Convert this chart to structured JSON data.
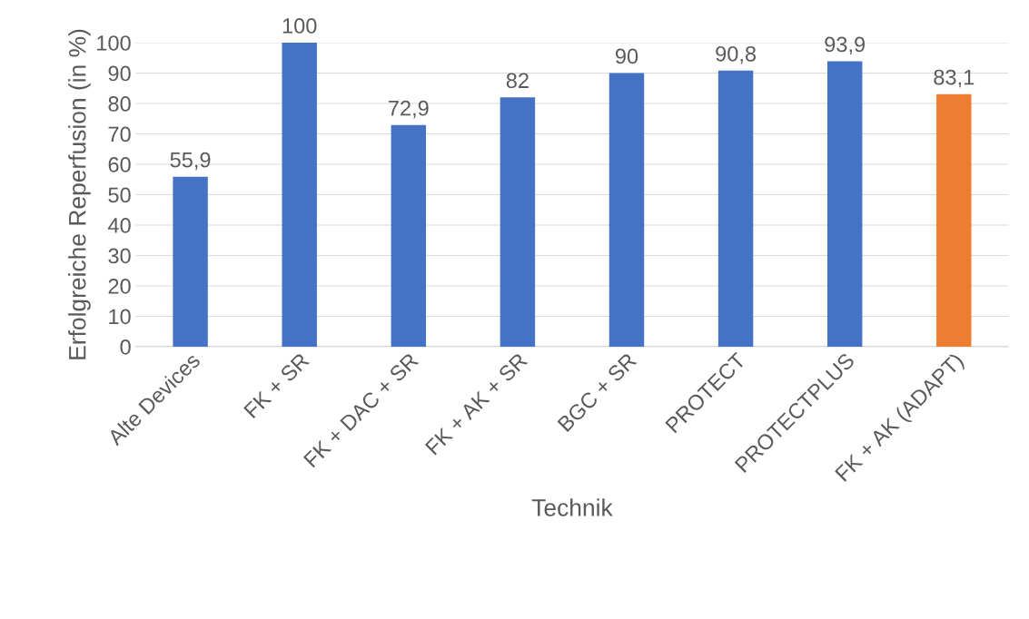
{
  "chart_data": {
    "type": "bar",
    "xlabel": "Technik",
    "ylabel": "Erfolgreiche Reperfusion (in %)",
    "categories": [
      "Alte Devices",
      "FK + SR",
      "FK + DAC + SR",
      "FK + AK + SR",
      "BGC + SR",
      "PROTECT",
      "PROTECTPLUS",
      "FK + AK (ADAPT)"
    ],
    "values": [
      55.9,
      100,
      72.9,
      82,
      90,
      90.8,
      93.9,
      83.1
    ],
    "colors": [
      "#4472c4",
      "#4472c4",
      "#4472c4",
      "#4472c4",
      "#4472c4",
      "#4472c4",
      "#4472c4",
      "#ed7d31"
    ],
    "value_labels": [
      "55,9",
      "100",
      "72,9",
      "82",
      "90",
      "90,8",
      "93,9",
      "83,1"
    ],
    "ylim": [
      0,
      100
    ],
    "yticks": [
      0,
      10,
      20,
      30,
      40,
      50,
      60,
      70,
      80,
      90,
      100
    ],
    "grid": "y",
    "legend": false
  }
}
